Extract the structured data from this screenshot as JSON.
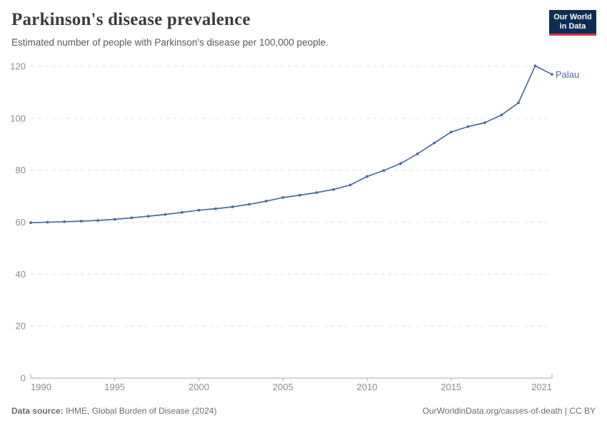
{
  "header": {
    "title": "Parkinson's disease prevalence",
    "subtitle": "Estimated number of people with Parkinson's disease per 100,000 people.",
    "logo_line1": "Our World",
    "logo_line2": "in Data"
  },
  "chart_data": {
    "type": "line",
    "title": "Parkinson's disease prevalence",
    "subtitle": "Estimated number of people with Parkinson's disease per 100,000 people.",
    "xlabel": "",
    "ylabel": "",
    "xlim": [
      1990,
      2021
    ],
    "ylim": [
      0,
      120
    ],
    "xticks": [
      1990,
      1995,
      2000,
      2005,
      2010,
      2015,
      2021
    ],
    "yticks": [
      0,
      20,
      40,
      60,
      80,
      100,
      120
    ],
    "grid": "horizontal-dashed",
    "grid_color": "#e2e2e2",
    "axis_color": "#a8a8a8",
    "tick_label_color": "#8c8c8c",
    "end_label": "Palau",
    "series": [
      {
        "name": "Palau",
        "color": "#4c6a9c",
        "x": [
          1990,
          1991,
          1992,
          1993,
          1994,
          1995,
          1996,
          1997,
          1998,
          1999,
          2000,
          2001,
          2002,
          2003,
          2004,
          2005,
          2006,
          2007,
          2008,
          2009,
          2010,
          2011,
          2012,
          2013,
          2014,
          2015,
          2016,
          2017,
          2018,
          2019,
          2020,
          2021
        ],
        "values": [
          59.8,
          60.0,
          60.2,
          60.4,
          60.7,
          61.1,
          61.7,
          62.3,
          63.0,
          63.8,
          64.6,
          65.2,
          65.9,
          66.9,
          68.1,
          69.5,
          70.4,
          71.4,
          72.6,
          74.3,
          77.6,
          79.9,
          82.6,
          86.3,
          90.5,
          94.7,
          96.8,
          98.3,
          101.3,
          105.9,
          120.2,
          116.9
        ]
      }
    ]
  },
  "footer": {
    "source_label": "Data source:",
    "source_text": " IHME, Global Burden of Disease (2024)",
    "credit": "OurWorldinData.org/causes-of-death | CC BY"
  }
}
